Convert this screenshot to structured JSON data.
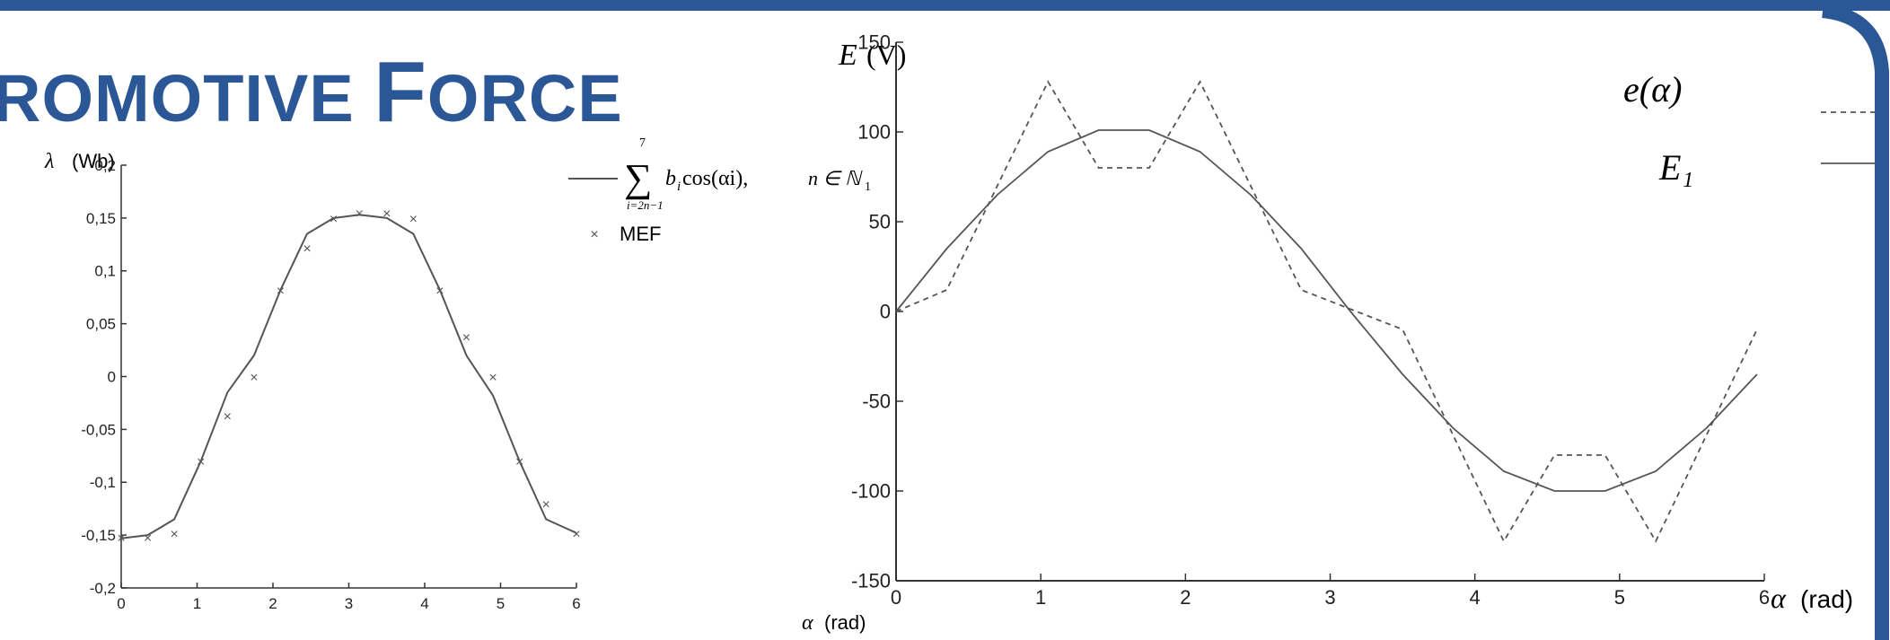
{
  "title": {
    "big1": "",
    "small1": "ROMOTIVE ",
    "big2": "F",
    "small2": "ORCE"
  },
  "colors": {
    "brand": "#2b5797",
    "line": "#555555"
  },
  "chart_data": [
    {
      "type": "line",
      "ylabel_sym": "λ",
      "ylabel_unit": "(Wb)",
      "xlabel_sym": "α",
      "xlabel_unit": "(rad)",
      "xlim": [
        0,
        6
      ],
      "ylim": [
        -0.2,
        0.2
      ],
      "x_ticks": [
        "0",
        "1",
        "2",
        "3",
        "4",
        "5",
        "6"
      ],
      "y_ticks": [
        "-0,2",
        "-0,15",
        "-0,1",
        "-0,05",
        "0",
        "0,05",
        "0,1",
        "0,15",
        "0,2"
      ],
      "grid": false,
      "legend_position": "top-right",
      "legend": {
        "sum_top": "7",
        "sum_bottom": "i=2n−1",
        "formula": "b",
        "formula_sub": "i",
        "formula_rest": " cos(αi),",
        "domain": "n ∈ ℕ",
        "domain_sub": "1",
        "marker_label": "MEF"
      },
      "series": [
        {
          "kind": "line",
          "x": [
            0,
            0.35,
            0.7,
            1.05,
            1.4,
            1.75,
            2.1,
            2.45,
            2.8,
            3.14,
            3.5,
            3.85,
            4.2,
            4.55,
            4.9,
            5.25,
            5.6,
            6.0
          ],
          "y": [
            -0.153,
            -0.15,
            -0.135,
            -0.08,
            -0.015,
            0.02,
            0.082,
            0.135,
            0.15,
            0.153,
            0.15,
            0.135,
            0.082,
            0.02,
            -0.018,
            -0.08,
            -0.135,
            -0.148
          ]
        },
        {
          "kind": "marker",
          "x": [
            0,
            0.35,
            0.7,
            1.05,
            1.4,
            1.75,
            2.1,
            2.45,
            2.8,
            3.14,
            3.5,
            3.85,
            4.2,
            4.55,
            4.9,
            5.25,
            5.6,
            6.0
          ],
          "y": [
            -0.152,
            -0.152,
            -0.148,
            -0.08,
            -0.037,
            0.0,
            0.082,
            0.122,
            0.15,
            0.155,
            0.155,
            0.15,
            0.082,
            0.038,
            0.0,
            -0.08,
            -0.12,
            -0.148
          ]
        }
      ]
    },
    {
      "type": "line",
      "ylabel_sym": "E",
      "ylabel_unit": "(V)",
      "xlabel_sym": "α",
      "xlabel_unit": "(rad)",
      "xlim": [
        0,
        6
      ],
      "ylim": [
        -150,
        150
      ],
      "x_ticks": [
        "0",
        "1",
        "2",
        "3",
        "4",
        "5",
        "6"
      ],
      "y_ticks": [
        "-150",
        "-100",
        "-50",
        "0",
        "50",
        "100",
        "150"
      ],
      "grid": false,
      "legend_position": "top-right",
      "series": [
        {
          "name": "e(α)",
          "style": "dashed",
          "x": [
            0,
            0.35,
            1.05,
            1.4,
            1.75,
            2.1,
            2.8,
            3.5,
            4.2,
            4.55,
            4.9,
            5.25,
            5.95
          ],
          "y": [
            0,
            12,
            128,
            80,
            80,
            128,
            12,
            -10,
            -128,
            -80,
            -80,
            -128,
            -10
          ]
        },
        {
          "name": "E₁",
          "style": "solid",
          "x": [
            0,
            0.35,
            0.7,
            1.05,
            1.4,
            1.75,
            2.1,
            2.45,
            2.8,
            3.14,
            3.5,
            3.85,
            4.2,
            4.55,
            4.9,
            5.25,
            5.6,
            5.95
          ],
          "y": [
            0,
            35,
            65,
            89,
            101,
            101,
            89,
            65,
            35,
            0,
            -35,
            -65,
            -89,
            -100,
            -100,
            -89,
            -65,
            -35
          ]
        }
      ]
    }
  ]
}
